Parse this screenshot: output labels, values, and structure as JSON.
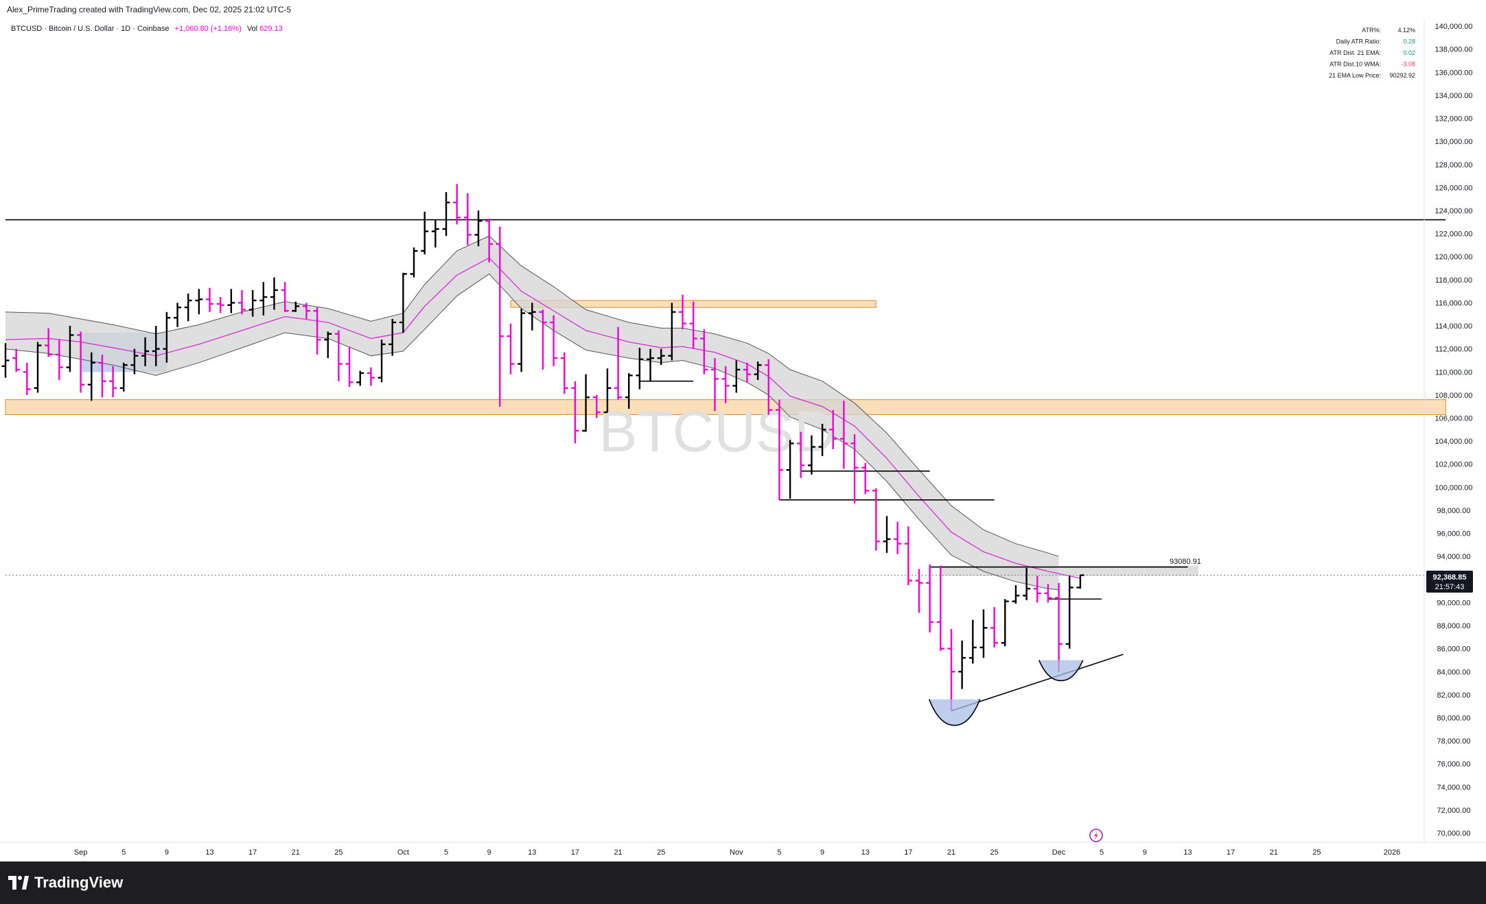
{
  "header": {
    "attribution": "Alex_PrimeTrading created with TradingView.com, Dec 02, 2025 21:02 UTC-5"
  },
  "legend": {
    "symbol": "BTCUSD · Bitcoin / U.S. Dollar · 1D · Coinbase",
    "change": "+1,060.80 (+1.16%)",
    "volume_label": "Vol",
    "volume_value": "629.13"
  },
  "watermark": "BTCUSD",
  "stats_table": [
    {
      "label": "ATR%:",
      "value": "4.12%",
      "color": "#131722"
    },
    {
      "label": "Daily ATR Ratio:",
      "value": "0.28",
      "color": "#089981"
    },
    {
      "label": "ATR Dist. 21 EMA:",
      "value": "0.02",
      "color": "#089981"
    },
    {
      "label": "ATR Dist.10 WMA:",
      "value": "-3.08",
      "color": "#f23645"
    },
    {
      "label": "21 EMA Low Price:",
      "value": "90292.92",
      "color": "#131722"
    }
  ],
  "price_tag": {
    "price": "92,368.85",
    "countdown": "21:57:43"
  },
  "level_label": "93080.91",
  "footer": {
    "brand": "TradingView"
  },
  "colors": {
    "bear": "#f000d8",
    "bull": "#000000",
    "zone": "#f7c98b",
    "ema": "#d63ad6",
    "band": "#d4d4d4"
  },
  "chart_data": {
    "type": "ohlc",
    "y_ticks": [
      "70,000.00",
      "72,000.00",
      "74,000.00",
      "76,000.00",
      "78,000.00",
      "80,000.00",
      "82,000.00",
      "84,000.00",
      "86,000.00",
      "88,000.00",
      "90,000.00",
      "92,000.00",
      "94,000.00",
      "96,000.00",
      "98,000.00",
      "100,000.00",
      "102,000.00",
      "104,000.00",
      "106,000.00",
      "108,000.00",
      "110,000.00",
      "112,000.00",
      "114,000.00",
      "116,000.00",
      "118,000.00",
      "120,000.00",
      "122,000.00",
      "124,000.00",
      "126,000.00",
      "128,000.00",
      "130,000.00",
      "132,000.00",
      "134,000.00",
      "136,000.00",
      "138,000.00",
      "140,000.00"
    ],
    "x_ticks": [
      {
        "label": "Sep",
        "day": 1
      },
      {
        "label": "5",
        "day": 5
      },
      {
        "label": "9",
        "day": 9
      },
      {
        "label": "13",
        "day": 13
      },
      {
        "label": "17",
        "day": 17
      },
      {
        "label": "21",
        "day": 21
      },
      {
        "label": "25",
        "day": 25
      },
      {
        "label": "Oct",
        "day": 31
      },
      {
        "label": "5",
        "day": 35
      },
      {
        "label": "9",
        "day": 39
      },
      {
        "label": "13",
        "day": 43
      },
      {
        "label": "17",
        "day": 47
      },
      {
        "label": "21",
        "day": 51
      },
      {
        "label": "25",
        "day": 55
      },
      {
        "label": "Nov",
        "day": 62
      },
      {
        "label": "5",
        "day": 66
      },
      {
        "label": "9",
        "day": 70
      },
      {
        "label": "13",
        "day": 74
      },
      {
        "label": "17",
        "day": 78
      },
      {
        "label": "21",
        "day": 82
      },
      {
        "label": "25",
        "day": 86
      },
      {
        "label": "Dec",
        "day": 92
      },
      {
        "label": "5",
        "day": 96
      },
      {
        "label": "9",
        "day": 100
      },
      {
        "label": "13",
        "day": 104
      },
      {
        "label": "17",
        "day": 108
      },
      {
        "label": "21",
        "day": 112
      },
      {
        "label": "25",
        "day": 116
      },
      {
        "label": "2026",
        "day": 123
      }
    ],
    "candles": [
      [
        -6,
        110500,
        112500,
        109500,
        111000
      ],
      [
        -5,
        111200,
        112000,
        110000,
        110200
      ],
      [
        -4,
        110000,
        110800,
        108000,
        108500
      ],
      [
        -3,
        108600,
        112600,
        108200,
        112300
      ],
      [
        -2,
        112300,
        113800,
        111300,
        111500
      ],
      [
        -1,
        111500,
        112800,
        109300,
        110400
      ],
      [
        0,
        110400,
        114000,
        110000,
        113200
      ],
      [
        1,
        113200,
        113500,
        108200,
        108900
      ],
      [
        2,
        108900,
        111700,
        107500,
        110800
      ],
      [
        3,
        110800,
        111500,
        107800,
        109200
      ],
      [
        4,
        109200,
        110500,
        107800,
        108600
      ],
      [
        5,
        108600,
        110800,
        108300,
        110600
      ],
      [
        6,
        110600,
        112000,
        109800,
        111400
      ],
      [
        7,
        111400,
        113000,
        110500,
        111800
      ],
      [
        8,
        111800,
        114000,
        110500,
        112000
      ],
      [
        9,
        112000,
        115200,
        110800,
        114700
      ],
      [
        10,
        114700,
        116000,
        113900,
        115600
      ],
      [
        11,
        115600,
        116800,
        114400,
        116200
      ],
      [
        12,
        116200,
        117200,
        115000,
        116300
      ],
      [
        13,
        116300,
        117300,
        115200,
        115900
      ],
      [
        14,
        115900,
        116500,
        115100,
        115800
      ],
      [
        15,
        115800,
        117200,
        115100,
        116000
      ],
      [
        16,
        116000,
        117100,
        115000,
        115400
      ],
      [
        17,
        115400,
        117100,
        114800,
        116200
      ],
      [
        18,
        116200,
        117800,
        114900,
        116500
      ],
      [
        19,
        116500,
        118200,
        115400,
        117100
      ],
      [
        20,
        117100,
        117800,
        115200,
        115300
      ],
      [
        21,
        115300,
        116100,
        115200,
        115700
      ],
      [
        22,
        115700,
        116000,
        114600,
        115300
      ],
      [
        23,
        115300,
        115600,
        111500,
        112800
      ],
      [
        24,
        112800,
        113500,
        111200,
        113300
      ],
      [
        25,
        113300,
        113600,
        109200,
        110700
      ],
      [
        26,
        110700,
        112200,
        108700,
        109100
      ],
      [
        27,
        109100,
        110100,
        108800,
        109900
      ],
      [
        28,
        109900,
        110400,
        108800,
        109500
      ],
      [
        29,
        109500,
        112800,
        109100,
        112400
      ],
      [
        30,
        112400,
        114600,
        111400,
        114300
      ],
      [
        31,
        114300,
        118600,
        113400,
        118500
      ],
      [
        32,
        118500,
        120800,
        118200,
        120500
      ],
      [
        33,
        120500,
        123900,
        120200,
        122200
      ],
      [
        34,
        122200,
        123200,
        120800,
        122400
      ],
      [
        35,
        122400,
        125600,
        121800,
        124700
      ],
      [
        36,
        124700,
        126300,
        122800,
        123400
      ],
      [
        37,
        123400,
        125500,
        121000,
        121900
      ],
      [
        38,
        121900,
        124000,
        120900,
        123100
      ],
      [
        39,
        123100,
        123300,
        119500,
        121100
      ],
      [
        40,
        121100,
        122600,
        107000,
        113100
      ],
      [
        41,
        113100,
        114200,
        109800,
        110700
      ],
      [
        42,
        110700,
        115500,
        110000,
        115100
      ],
      [
        43,
        115100,
        116000,
        113600,
        115200
      ],
      [
        44,
        115200,
        115400,
        110200,
        114300
      ],
      [
        45,
        114300,
        114900,
        110500,
        111200
      ],
      [
        46,
        111200,
        111700,
        108100,
        108600
      ],
      [
        47,
        108600,
        109200,
        103800,
        104900
      ],
      [
        48,
        104900,
        109800,
        104800,
        107800
      ],
      [
        49,
        107800,
        108000,
        106000,
        106500
      ],
      [
        50,
        106500,
        110300,
        106500,
        108600
      ],
      [
        51,
        108600,
        113900,
        107600,
        107800
      ],
      [
        52,
        107800,
        109900,
        106800,
        109700
      ],
      [
        53,
        109700,
        112100,
        108500,
        111100
      ],
      [
        54,
        111100,
        112000,
        109200,
        111200
      ],
      [
        55,
        111200,
        112000,
        110600,
        111400
      ],
      [
        56,
        111400,
        116000,
        111000,
        115200
      ],
      [
        57,
        115200,
        116700,
        113700,
        114200
      ],
      [
        58,
        114200,
        116100,
        112000,
        112900
      ],
      [
        59,
        112900,
        113700,
        109800,
        110200
      ],
      [
        60,
        110200,
        111200,
        106600,
        109400
      ],
      [
        61,
        109400,
        110500,
        107300,
        108800
      ],
      [
        62,
        108800,
        111000,
        108200,
        110200
      ],
      [
        63,
        110200,
        110800,
        109100,
        109800
      ],
      [
        64,
        109800,
        110900,
        109300,
        110600
      ],
      [
        65,
        110600,
        111100,
        106300,
        106700
      ],
      [
        66,
        106700,
        107600,
        98900,
        101500
      ],
      [
        67,
        101500,
        104100,
        99000,
        103800
      ],
      [
        68,
        103800,
        104800,
        100800,
        101900
      ],
      [
        69,
        101900,
        104500,
        101100,
        103500
      ],
      [
        70,
        103500,
        105500,
        102700,
        105000
      ],
      [
        71,
        105000,
        106700,
        103300,
        104200
      ],
      [
        72,
        104200,
        107500,
        101600,
        103800
      ],
      [
        73,
        103800,
        104600,
        98600,
        101700
      ],
      [
        74,
        101700,
        102100,
        99400,
        99700
      ],
      [
        75,
        99700,
        99900,
        94500,
        95300
      ],
      [
        76,
        95300,
        97500,
        94300,
        95500
      ],
      [
        77,
        95500,
        97000,
        94200,
        95100
      ],
      [
        78,
        95100,
        96600,
        91500,
        91900
      ],
      [
        79,
        91900,
        92900,
        89100,
        91700
      ],
      [
        80,
        91700,
        93300,
        87400,
        88300
      ],
      [
        81,
        88300,
        93200,
        85800,
        86000
      ],
      [
        82,
        86000,
        87700,
        80600,
        84000
      ],
      [
        83,
        84000,
        86700,
        82500,
        85200
      ],
      [
        84,
        85200,
        88500,
        84700,
        86100
      ],
      [
        85,
        86100,
        89400,
        85200,
        87800
      ],
      [
        86,
        87800,
        89600,
        86100,
        86500
      ],
      [
        87,
        86500,
        90300,
        86200,
        90100
      ],
      [
        88,
        90100,
        91500,
        89900,
        90600
      ],
      [
        89,
        90600,
        93000,
        90200,
        91200
      ],
      [
        90,
        91200,
        92300,
        90000,
        90800
      ],
      [
        91,
        90800,
        91600,
        90000,
        90400
      ],
      [
        92,
        90400,
        91700,
        84000,
        86400
      ],
      [
        93,
        86400,
        92300,
        86000,
        91300
      ],
      [
        94,
        91300,
        92400,
        91200,
        92368
      ]
    ],
    "ema21": [
      [
        -6,
        112800
      ],
      [
        -2,
        112900
      ],
      [
        1,
        112600
      ],
      [
        4,
        112100
      ],
      [
        8,
        111400
      ],
      [
        12,
        112400
      ],
      [
        16,
        113600
      ],
      [
        20,
        114800
      ],
      [
        24,
        114300
      ],
      [
        28,
        112900
      ],
      [
        31,
        113400
      ],
      [
        33,
        115700
      ],
      [
        36,
        118400
      ],
      [
        39,
        119900
      ],
      [
        42,
        117000
      ],
      [
        45,
        115300
      ],
      [
        48,
        113600
      ],
      [
        52,
        112600
      ],
      [
        55,
        112100
      ],
      [
        57,
        112200
      ],
      [
        60,
        111700
      ],
      [
        63,
        110700
      ],
      [
        65,
        109600
      ],
      [
        67,
        107900
      ],
      [
        70,
        107000
      ],
      [
        73,
        105300
      ],
      [
        76,
        102500
      ],
      [
        79,
        99200
      ],
      [
        82,
        96100
      ],
      [
        85,
        94400
      ],
      [
        88,
        93400
      ],
      [
        91,
        92700
      ],
      [
        94,
        92100
      ]
    ],
    "band_upper": [
      [
        -6,
        115200
      ],
      [
        -2,
        115100
      ],
      [
        1,
        114600
      ],
      [
        4,
        114100
      ],
      [
        8,
        113300
      ],
      [
        12,
        114100
      ],
      [
        16,
        115200
      ],
      [
        20,
        116100
      ],
      [
        24,
        115500
      ],
      [
        28,
        114400
      ],
      [
        31,
        115100
      ],
      [
        33,
        117600
      ],
      [
        36,
        120500
      ],
      [
        39,
        121800
      ],
      [
        42,
        119200
      ],
      [
        45,
        117400
      ],
      [
        48,
        115400
      ],
      [
        52,
        114300
      ],
      [
        55,
        113800
      ],
      [
        57,
        113800
      ],
      [
        60,
        113300
      ],
      [
        63,
        112500
      ],
      [
        65,
        111600
      ],
      [
        67,
        110200
      ],
      [
        70,
        109200
      ],
      [
        73,
        107300
      ],
      [
        76,
        104700
      ],
      [
        79,
        101500
      ],
      [
        82,
        98400
      ],
      [
        85,
        96300
      ],
      [
        88,
        95100
      ],
      [
        91,
        94300
      ],
      [
        92,
        94000
      ]
    ],
    "band_lower": [
      [
        -6,
        112000
      ],
      [
        -2,
        111600
      ],
      [
        1,
        111100
      ],
      [
        4,
        110600
      ],
      [
        8,
        109700
      ],
      [
        12,
        110800
      ],
      [
        16,
        112100
      ],
      [
        20,
        113400
      ],
      [
        24,
        112900
      ],
      [
        28,
        111400
      ],
      [
        31,
        111800
      ],
      [
        33,
        113700
      ],
      [
        36,
        116600
      ],
      [
        39,
        118500
      ],
      [
        42,
        115500
      ],
      [
        45,
        113600
      ],
      [
        48,
        111900
      ],
      [
        52,
        111200
      ],
      [
        55,
        110800
      ],
      [
        57,
        111000
      ],
      [
        60,
        110300
      ],
      [
        63,
        109100
      ],
      [
        65,
        108000
      ],
      [
        67,
        106100
      ],
      [
        70,
        105000
      ],
      [
        73,
        103300
      ],
      [
        76,
        100500
      ],
      [
        79,
        97200
      ],
      [
        82,
        94100
      ],
      [
        85,
        92700
      ],
      [
        88,
        91800
      ],
      [
        91,
        91200
      ],
      [
        92,
        91100
      ]
    ],
    "horizontal_lines": [
      {
        "y": 123200,
        "from": -6,
        "to": 128
      },
      {
        "y": 109200,
        "from": 53,
        "to": 58
      },
      {
        "y": 101400,
        "from": 68,
        "to": 80
      },
      {
        "y": 98900,
        "from": 66,
        "to": 86
      },
      {
        "y": 93080.91,
        "from": 80,
        "to": 104
      },
      {
        "y": 90300,
        "from": 91,
        "to": 96
      }
    ],
    "zones": [
      {
        "from": -6,
        "to": 128,
        "y1": 106300,
        "y2": 107600,
        "color": "#f7c98b"
      },
      {
        "from": 41,
        "to": 75,
        "y1": 115600,
        "y2": 116200,
        "color": "#f7c98b"
      },
      {
        "from": 81,
        "to": 105,
        "y1": 92300,
        "y2": 93200,
        "color": "#c8c8c8"
      },
      {
        "from": 1,
        "to": 9,
        "y1": 110000,
        "y2": 113400,
        "color": "#a9bde6"
      }
    ],
    "trendline": [
      [
        82,
        80600
      ],
      [
        98,
        85500
      ]
    ],
    "last_price": 92368.85,
    "ylim": [
      69200,
      140600
    ],
    "xlim": [
      -6,
      126
    ]
  }
}
